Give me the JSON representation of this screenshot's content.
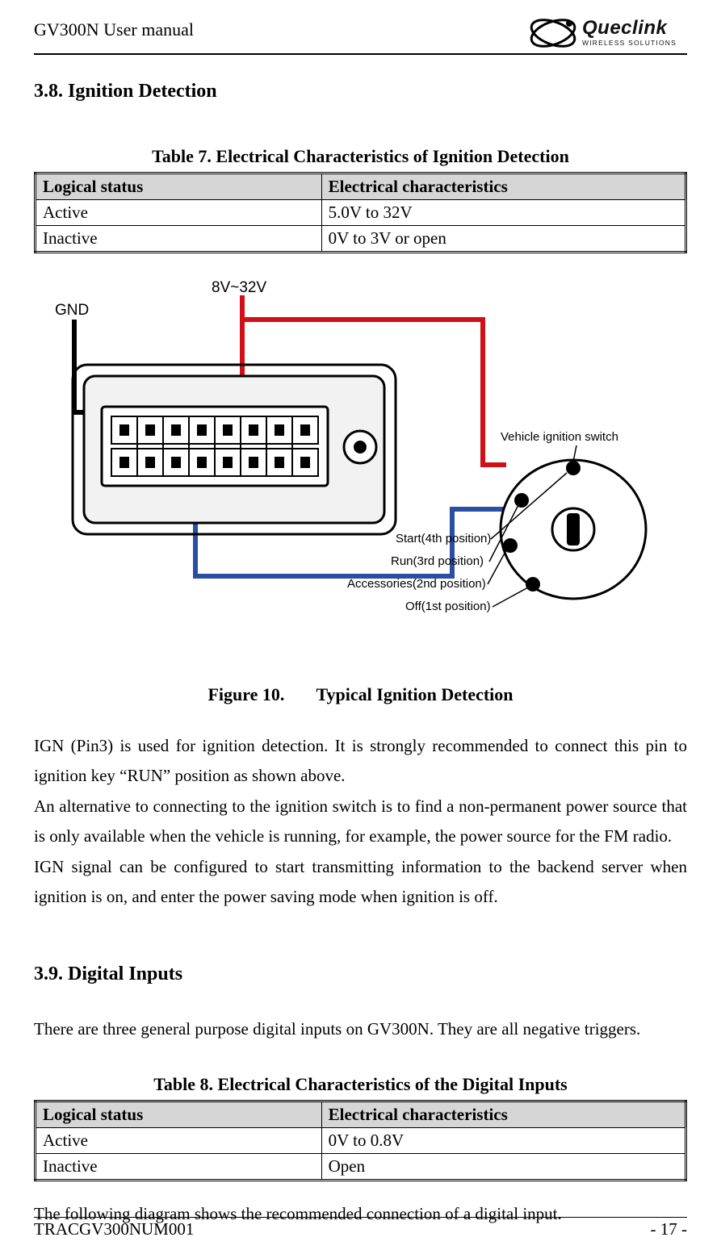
{
  "header": {
    "doc_title": "GV300N User manual",
    "logo_main": "Queclink",
    "logo_sub": "WIRELESS SOLUTIONS"
  },
  "section1": {
    "title": "3.8. Ignition Detection",
    "table_caption": "Table 7.  Electrical Characteristics of Ignition Detection",
    "col1": "Logical status",
    "col2": "Electrical characteristics",
    "rows": [
      {
        "c1": "Active",
        "c2": "5.0V to 32V"
      },
      {
        "c1": "Inactive",
        "c2": "0V to 3V or open"
      }
    ],
    "figure_label": "Figure 10.",
    "figure_title": "Typical Ignition Detection",
    "body": "IGN (Pin3) is used for ignition detection. It is strongly recommended to connect this pin to ignition key “RUN” position as shown above.\nAn alternative to connecting to the ignition switch is to find a non-permanent power source that is only available when the vehicle is running, for example, the power source for the FM radio.\nIGN signal can be configured to start transmitting information to the backend server when ignition is on, and enter the power saving mode when ignition is off."
  },
  "section2": {
    "title": "3.9. Digital Inputs",
    "intro": "There are three general purpose digital inputs on GV300N. They are all negative triggers.",
    "table_caption": "Table 8.  Electrical Characteristics of the Digital Inputs",
    "col1": "Logical status",
    "col2": "Electrical characteristics",
    "rows": [
      {
        "c1": "Active",
        "c2": "0V to 0.8V"
      },
      {
        "c1": "Inactive",
        "c2": "Open"
      }
    ],
    "after": "The following diagram shows the recommended connection of a digital input."
  },
  "diagram": {
    "gnd_label": "GND",
    "volt_label": "8V~32V",
    "switch_title": "Vehicle ignition switch",
    "pos4": "Start(4th position)",
    "pos3": "Run(3rd position)",
    "pos2": "Accessories(2nd position)",
    "pos1": "Off(1st position)",
    "colors": {
      "gnd_wire": "#000000",
      "power_wire": "#d01016",
      "ign_wire": "#2a4fa2",
      "device_fill": "#f2f2f2",
      "device_stroke": "#000000"
    }
  },
  "footer": {
    "left": "TRACGV300NUM001",
    "right": "- 17 -"
  }
}
